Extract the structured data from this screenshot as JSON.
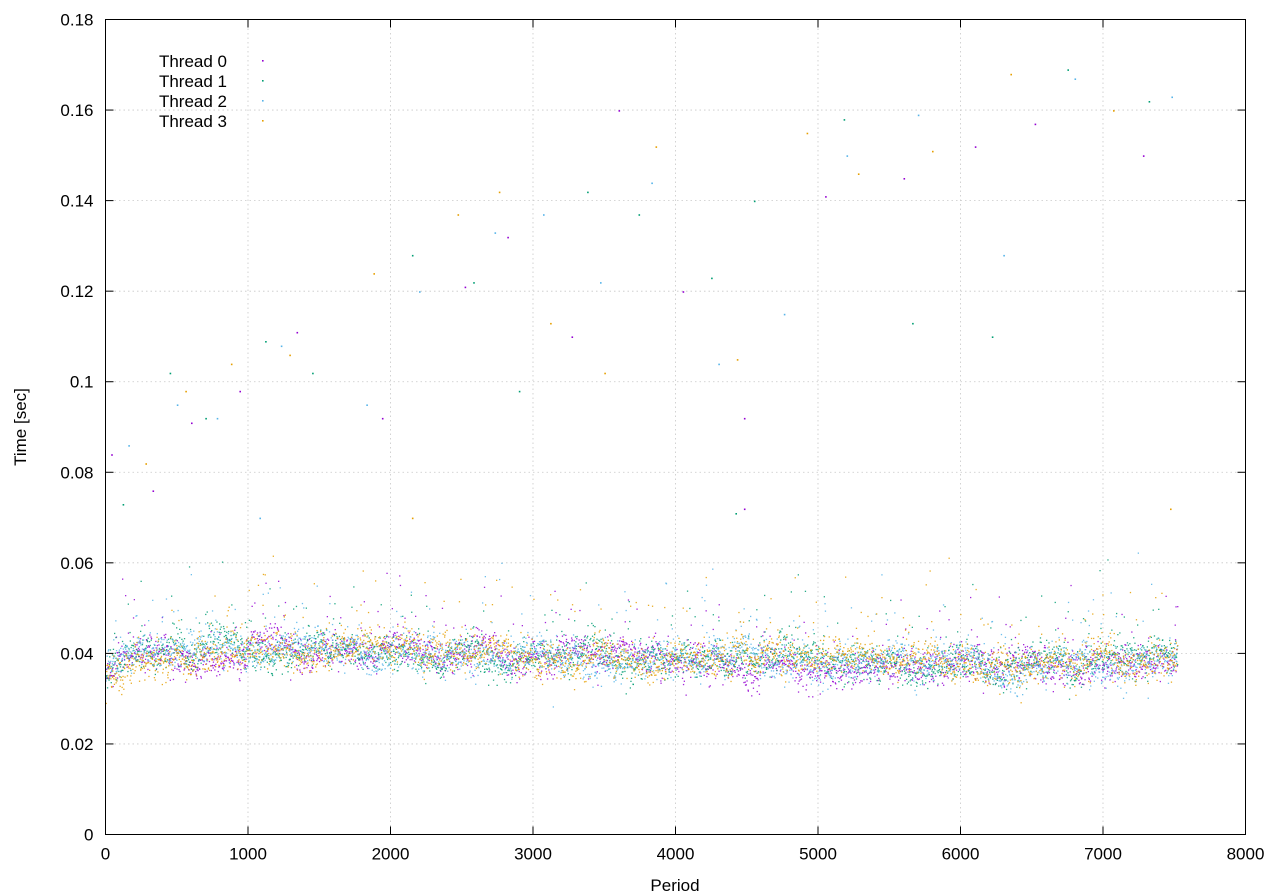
{
  "chart_data": {
    "type": "scatter",
    "title": "",
    "xlabel": "Period",
    "ylabel": "Time [sec]",
    "xlim": [
      0,
      8000
    ],
    "ylim": [
      0,
      0.18
    ],
    "xticks": [
      "0",
      "1000",
      "2000",
      "3000",
      "4000",
      "5000",
      "6000",
      "7000",
      "8000"
    ],
    "yticks": [
      "0",
      "0.02",
      "0.04",
      "0.06",
      "0.08",
      "0.1",
      "0.12",
      "0.14",
      "0.16",
      "0.18"
    ],
    "grid": true,
    "legend_position": "top-left",
    "period_range": [
      0,
      7520
    ],
    "series": [
      {
        "name": "Thread 0",
        "color": "#9400d3",
        "typical_time": 0.039,
        "trend": [
          [
            0,
            0.036
          ],
          [
            300,
            0.04
          ],
          [
            1500,
            0.041
          ],
          [
            3000,
            0.039
          ],
          [
            5500,
            0.037
          ],
          [
            7520,
            0.039
          ]
        ]
      },
      {
        "name": "Thread 1",
        "color": "#009e73",
        "typical_time": 0.039,
        "trend": [
          [
            0,
            0.036
          ],
          [
            300,
            0.04
          ],
          [
            1500,
            0.04
          ],
          [
            3000,
            0.039
          ],
          [
            5500,
            0.038
          ],
          [
            7520,
            0.039
          ]
        ]
      },
      {
        "name": "Thread 2",
        "color": "#56b4e9",
        "typical_time": 0.039,
        "trend": [
          [
            0,
            0.036
          ],
          [
            300,
            0.04
          ],
          [
            1500,
            0.041
          ],
          [
            3000,
            0.039
          ],
          [
            5500,
            0.038
          ],
          [
            7520,
            0.038
          ]
        ]
      },
      {
        "name": "Thread 3",
        "color": "#e69f00",
        "typical_time": 0.039,
        "trend": [
          [
            0,
            0.035
          ],
          [
            300,
            0.04
          ],
          [
            1500,
            0.041
          ],
          [
            3000,
            0.039
          ],
          [
            5500,
            0.038
          ],
          [
            6500,
            0.036
          ],
          [
            7520,
            0.04
          ]
        ]
      }
    ],
    "outliers": [
      [
        40,
        0.084
      ],
      [
        120,
        0.073
      ],
      [
        160,
        0.086
      ],
      [
        280,
        0.082
      ],
      [
        330,
        0.076
      ],
      [
        450,
        0.102
      ],
      [
        500,
        0.095
      ],
      [
        560,
        0.098
      ],
      [
        600,
        0.091
      ],
      [
        700,
        0.092
      ],
      [
        780,
        0.092
      ],
      [
        880,
        0.104
      ],
      [
        940,
        0.098
      ],
      [
        1120,
        0.109
      ],
      [
        1230,
        0.108
      ],
      [
        1290,
        0.106
      ],
      [
        1340,
        0.111
      ],
      [
        1450,
        0.102
      ],
      [
        1830,
        0.095
      ],
      [
        1880,
        0.124
      ],
      [
        1940,
        0.092
      ],
      [
        2150,
        0.128
      ],
      [
        2200,
        0.12
      ],
      [
        2470,
        0.137
      ],
      [
        2520,
        0.121
      ],
      [
        2580,
        0.122
      ],
      [
        2730,
        0.133
      ],
      [
        2760,
        0.142
      ],
      [
        2820,
        0.132
      ],
      [
        2900,
        0.098
      ],
      [
        3070,
        0.137
      ],
      [
        3120,
        0.113
      ],
      [
        3270,
        0.11
      ],
      [
        3380,
        0.142
      ],
      [
        3470,
        0.122
      ],
      [
        3500,
        0.102
      ],
      [
        3600,
        0.16
      ],
      [
        3740,
        0.137
      ],
      [
        3830,
        0.144
      ],
      [
        3860,
        0.152
      ],
      [
        4050,
        0.12
      ],
      [
        4250,
        0.123
      ],
      [
        4300,
        0.104
      ],
      [
        4430,
        0.105
      ],
      [
        4480,
        0.092
      ],
      [
        4550,
        0.14
      ],
      [
        4760,
        0.115
      ],
      [
        4920,
        0.155
      ],
      [
        5050,
        0.141
      ],
      [
        5180,
        0.158
      ],
      [
        5200,
        0.15
      ],
      [
        5280,
        0.146
      ],
      [
        5600,
        0.145
      ],
      [
        5660,
        0.113
      ],
      [
        5700,
        0.159
      ],
      [
        5800,
        0.151
      ],
      [
        6100,
        0.152
      ],
      [
        6220,
        0.11
      ],
      [
        6300,
        0.128
      ],
      [
        6350,
        0.168
      ],
      [
        6520,
        0.157
      ],
      [
        6750,
        0.169
      ],
      [
        6800,
        0.167
      ],
      [
        7070,
        0.16
      ],
      [
        7280,
        0.15
      ],
      [
        7320,
        0.162
      ],
      [
        7480,
        0.163
      ],
      [
        7470,
        0.072
      ],
      [
        4480,
        0.072
      ],
      [
        4420,
        0.071
      ],
      [
        1080,
        0.07
      ],
      [
        2150,
        0.07
      ]
    ]
  }
}
